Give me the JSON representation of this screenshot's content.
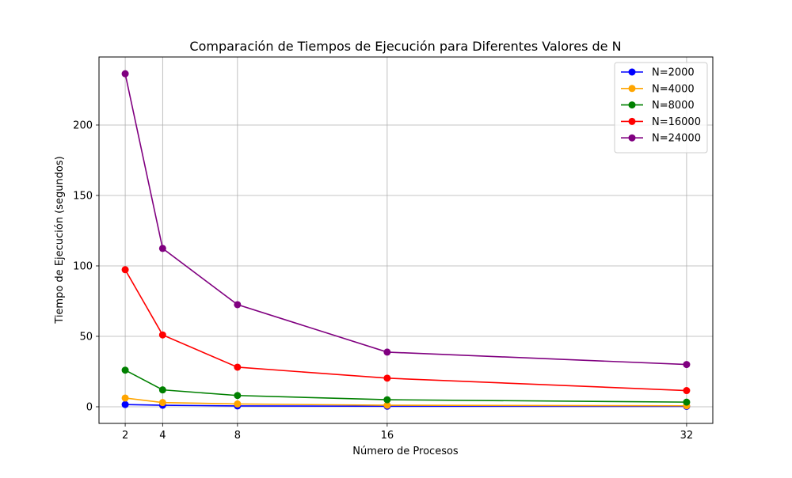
{
  "chart_data": {
    "type": "line",
    "title": "Comparación de Tiempos de Ejecución para Diferentes Valores de N",
    "xlabel": "Número de Procesos",
    "ylabel": "Tiempo de Ejecución (segundos)",
    "x": [
      2,
      4,
      8,
      16,
      32
    ],
    "x_ticks": [
      "2",
      "4",
      "8",
      "16",
      "32"
    ],
    "y_ticks": [
      0,
      50,
      100,
      150,
      200
    ],
    "xlim": [
      0.6,
      33.4
    ],
    "ylim": [
      -11.8,
      248.3
    ],
    "grid": true,
    "legend_position": "top-right",
    "series": [
      {
        "name": "N=2000",
        "color": "#0000ff",
        "values": [
          1.6,
          1.1,
          0.6,
          0.4,
          0.3
        ]
      },
      {
        "name": "N=4000",
        "color": "#ffa500",
        "values": [
          6.2,
          3.0,
          2.0,
          1.1,
          0.7
        ]
      },
      {
        "name": "N=8000",
        "color": "#008000",
        "values": [
          26.0,
          12.0,
          8.0,
          5.0,
          3.3
        ]
      },
      {
        "name": "N=16000",
        "color": "#ff0000",
        "values": [
          97.3,
          51.0,
          28.1,
          20.3,
          11.5
        ]
      },
      {
        "name": "N=24000",
        "color": "#800080",
        "values": [
          236.4,
          112.4,
          72.5,
          38.8,
          30.0
        ]
      }
    ]
  }
}
